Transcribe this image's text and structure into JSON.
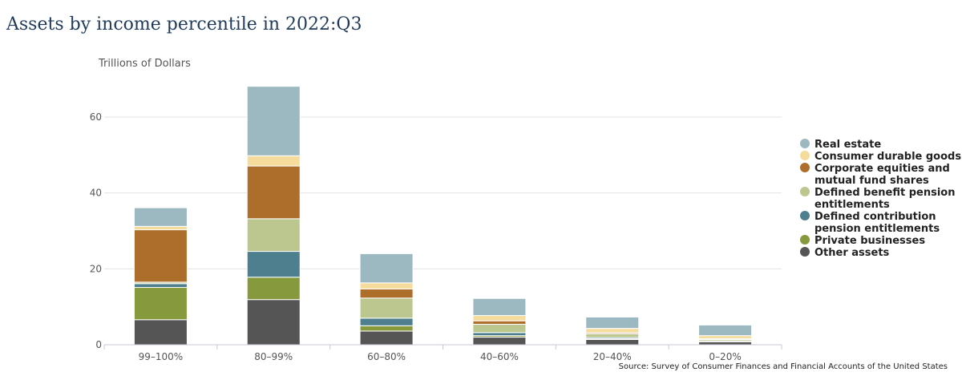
{
  "title": "Assets by income percentile in 2022:Q3",
  "source": "Source: Survey of Consumer Finances and Financial Accounts of the United States",
  "chart_data": {
    "type": "bar",
    "stacked": true,
    "title": "Assets by income percentile in 2022:Q3",
    "ylabel": "Trillions of Dollars",
    "xlabel": "",
    "ylim": [
      0,
      72
    ],
    "yticks": [
      0,
      20,
      40,
      60
    ],
    "grid": true,
    "legend_position": "right",
    "categories": [
      "99–100%",
      "80–99%",
      "60–80%",
      "40–60%",
      "20–40%",
      "0–20%"
    ],
    "series": [
      {
        "name": "Other assets",
        "color": "#555555",
        "values": [
          6.6,
          11.9,
          3.6,
          2.0,
          1.4,
          0.8
        ]
      },
      {
        "name": "Private businesses",
        "color": "#86993d",
        "values": [
          8.5,
          5.9,
          1.4,
          0.4,
          0.2,
          0.1
        ]
      },
      {
        "name": "Defined contribution pension entitlements",
        "color": "#4e7f8e",
        "values": [
          1.0,
          6.8,
          2.0,
          0.8,
          0.3,
          0.1
        ]
      },
      {
        "name": "Defined benefit pension entitlements",
        "color": "#bbc78e",
        "values": [
          0.4,
          8.6,
          5.3,
          2.2,
          1.0,
          0.4
        ]
      },
      {
        "name": "Corporate equities and mutual fund shares",
        "color": "#ad6e2b",
        "values": [
          13.8,
          13.9,
          2.4,
          0.9,
          0.3,
          0.2
        ]
      },
      {
        "name": "Consumer durable goods",
        "color": "#f5dc9c",
        "values": [
          0.9,
          2.7,
          1.6,
          1.4,
          1.1,
          0.8
        ]
      },
      {
        "name": "Real estate",
        "color": "#9cb8c1",
        "values": [
          4.9,
          18.3,
          7.7,
          4.5,
          3.0,
          2.8
        ]
      }
    ],
    "legend_order": [
      "Real estate",
      "Consumer durable goods",
      "Corporate equities and mutual fund shares",
      "Defined benefit pension entitlements",
      "Defined contribution pension entitlements",
      "Private businesses",
      "Other assets"
    ]
  }
}
